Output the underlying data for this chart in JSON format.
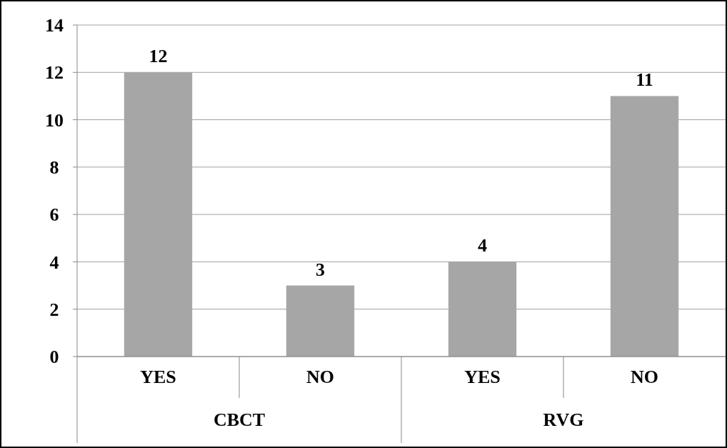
{
  "chart_data": {
    "type": "bar",
    "categories": [
      "YES",
      "NO",
      "YES",
      "NO"
    ],
    "values": [
      12,
      3,
      4,
      11
    ],
    "color": "#a6a6a6",
    "ylim": [
      0,
      14
    ],
    "yticks": [
      0,
      2,
      4,
      6,
      8,
      10,
      12,
      14
    ],
    "grid": "y",
    "data_labels": true,
    "annotations": [
      "CBCT",
      "RVG"
    ]
  }
}
